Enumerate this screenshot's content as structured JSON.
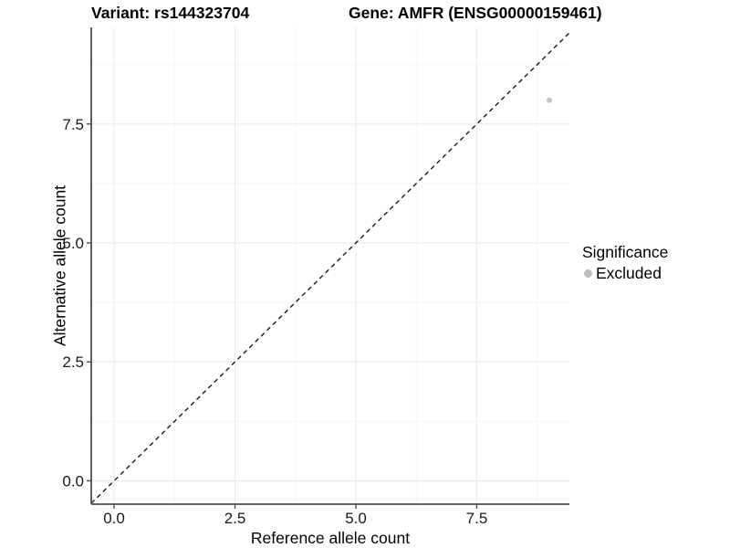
{
  "figure": {
    "title_left": "Variant: rs144323704",
    "title_right": "Gene: AMFR (ENSG00000159461)"
  },
  "chart_data": {
    "type": "scatter",
    "title": "Variant: rs144323704        Gene: AMFR (ENSG00000159461)",
    "xlabel": "Reference allele count",
    "ylabel": "Alternative allele count",
    "xlim": [
      -0.472,
      9.415
    ],
    "ylim": [
      -0.49,
      9.53
    ],
    "x_ticks": [
      0,
      2.5,
      5,
      7.5
    ],
    "x_tick_labels": [
      "0.0",
      "2.5",
      "5.0",
      "7.5"
    ],
    "y_ticks": [
      0,
      2.5,
      5,
      7.5
    ],
    "y_tick_labels": [
      "0.0",
      "2.5",
      "5.0",
      "7.5"
    ],
    "x_minor_ticks": [
      1.25,
      3.75,
      6.25,
      8.75
    ],
    "y_minor_ticks": [
      1.25,
      3.75,
      6.25,
      8.75
    ],
    "grid": true,
    "legend_position": "right",
    "points": [
      {
        "x": 9,
        "y": 8,
        "series": "Excluded"
      }
    ],
    "reference_line": {
      "equation": "y = x",
      "style": "dashed"
    }
  },
  "legend": {
    "title": "Significance",
    "items": [
      {
        "label": "Excluded",
        "marker": "circle-icon",
        "color": "#bdbdbd"
      }
    ]
  },
  "colors": {
    "background": "#ffffff",
    "axis_line": "#4d4d4d",
    "tick_text": "#1a1a1a",
    "grid_major": "#ebebeb",
    "grid_minor": "#f5f5f5",
    "point": "#c3c3c3",
    "identity_line": "#1a1a1a"
  }
}
